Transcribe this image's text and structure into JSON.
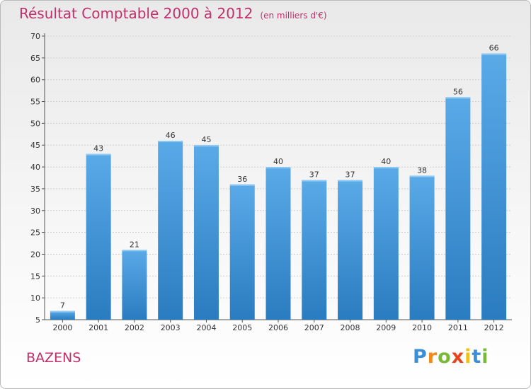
{
  "chart_data": {
    "type": "bar",
    "title": "Résultat Comptable 2000 à 2012",
    "subtitle": "(en milliers d'€)",
    "categories": [
      "2000",
      "2001",
      "2002",
      "2003",
      "2004",
      "2005",
      "2006",
      "2007",
      "2008",
      "2009",
      "2010",
      "2011",
      "2012"
    ],
    "values": [
      7,
      43,
      21,
      46,
      45,
      36,
      40,
      37,
      37,
      40,
      38,
      56,
      66
    ],
    "ylim": [
      5,
      70
    ],
    "yticks": [
      5,
      10,
      15,
      20,
      25,
      30,
      35,
      40,
      45,
      50,
      55,
      60,
      65,
      70
    ],
    "grid": true,
    "colors": {
      "bar_top": "#5aaae8",
      "bar_bottom": "#2a7cc0",
      "grid": "#d0d0d0",
      "title": "#c0306a"
    }
  },
  "commune": "BAZENS",
  "logo": {
    "letters": [
      "P",
      "r",
      "o",
      "x",
      "i",
      "t",
      "i"
    ],
    "colors": [
      "#3a8fd8",
      "#f08a1c",
      "#7ab83a",
      "#e8441c",
      "#f0c01c",
      "#3a8fd8",
      "#7ab83a"
    ]
  }
}
